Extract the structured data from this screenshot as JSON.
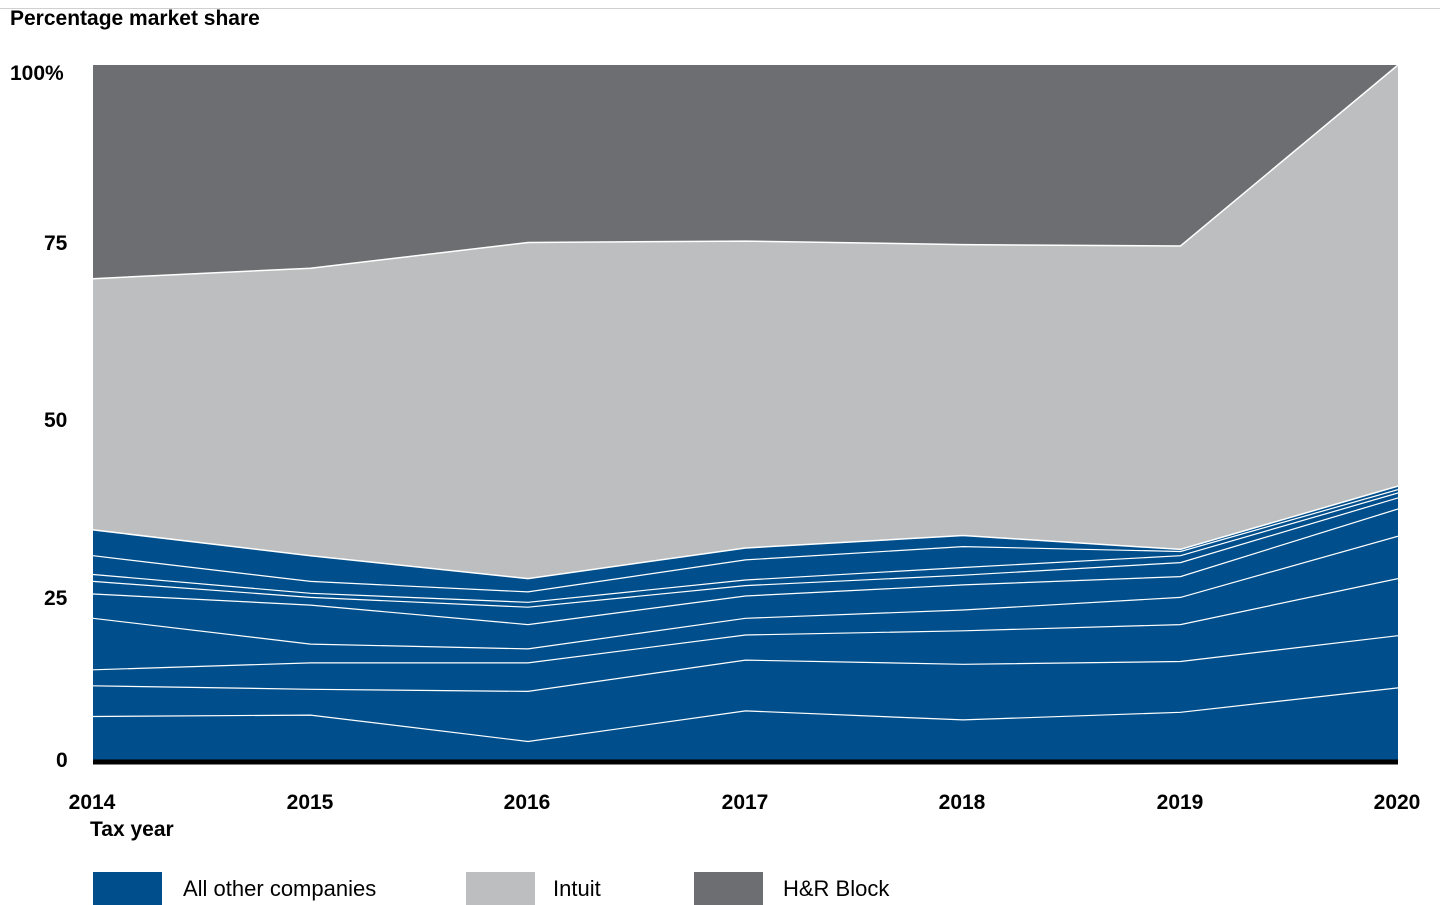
{
  "chart_data": {
    "type": "area",
    "stacked": true,
    "y_title": "Percentage market share",
    "xlabel": "Tax year",
    "x": [
      "2014",
      "2015",
      "2016",
      "2017",
      "2018",
      "2019",
      "2020"
    ],
    "ylim": [
      0,
      100
    ],
    "y_ticks": [
      "0",
      "25",
      "50",
      "75",
      "100%"
    ],
    "y_tick_values": [
      0,
      25,
      50,
      75,
      100
    ],
    "grid": false,
    "legend_position": "bottom",
    "colors": {
      "All other companies": "#004f8c",
      "Intuit": "#bdbec0",
      "H&R Block": "#6d6e71",
      "boundary": "#ffffff"
    },
    "series": [
      {
        "name": "All other companies",
        "values": [
          33.2,
          29.5,
          26.2,
          30.6,
          32.4,
          30.4,
          39.5
        ]
      },
      {
        "name": "Intuit",
        "values": [
          36.1,
          41.3,
          48.3,
          44.1,
          41.8,
          43.6,
          60.5
        ]
      },
      {
        "name": "H&R Block",
        "values": [
          30.7,
          29.2,
          25.5,
          25.3,
          25.8,
          26.0,
          0.0
        ]
      }
    ],
    "other_company_boundaries": [
      [
        6.4,
        6.6,
        2.8,
        7.2,
        5.9,
        7.0,
        10.5
      ],
      [
        10.8,
        10.3,
        10.0,
        14.5,
        13.9,
        14.3,
        18.0
      ],
      [
        13.1,
        14.1,
        14.1,
        18.1,
        18.7,
        19.6,
        26.2
      ],
      [
        20.5,
        16.8,
        16.1,
        20.5,
        21.7,
        23.5,
        32.3
      ],
      [
        24.0,
        22.4,
        19.6,
        23.7,
        25.3,
        26.5,
        36.2
      ],
      [
        25.8,
        23.5,
        22.1,
        25.2,
        26.7,
        28.5,
        37.8
      ],
      [
        26.8,
        24.1,
        22.8,
        26.0,
        27.8,
        29.5,
        38.5
      ],
      [
        29.5,
        25.8,
        24.3,
        28.9,
        30.8,
        30.1,
        39.0
      ]
    ]
  }
}
